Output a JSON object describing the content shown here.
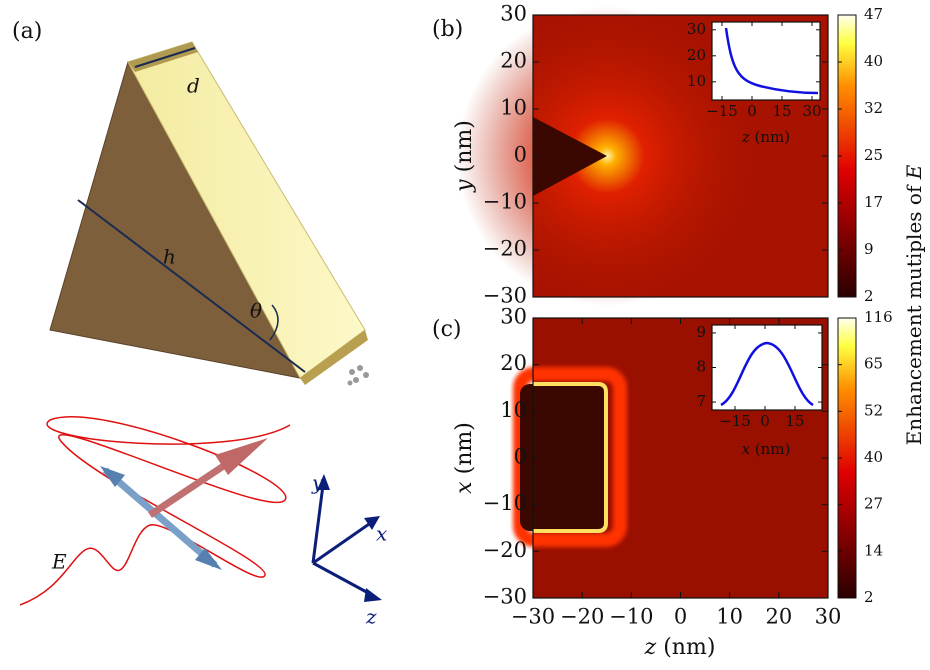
{
  "panel_a": {
    "label": "(a)",
    "prism_labels": {
      "d": "d",
      "h": "h",
      "theta": "θ"
    },
    "field_label": "E",
    "axes": {
      "x": "x",
      "y": "y",
      "z": "z"
    }
  },
  "panel_b": {
    "label": "(b)",
    "y_axis_title": {
      "symbol": "y",
      "unit": "(nm)"
    },
    "xlim": [
      -30,
      30
    ],
    "ylim": [
      -30,
      30
    ],
    "yticks": [
      30,
      20,
      10,
      0,
      {
        "value": -10,
        "label": "−10"
      },
      {
        "value": -20,
        "label": "−20"
      },
      {
        "value": -30,
        "label": "−30"
      }
    ],
    "colorbar": {
      "ticks": [
        2,
        9,
        17,
        25,
        32,
        40,
        47
      ]
    },
    "inset": {
      "x_title": {
        "symbol": "z",
        "unit": "(nm)"
      },
      "xlim": [
        -20,
        34
      ],
      "ylim": [
        3,
        33
      ],
      "xticks": [
        {
          "value": -15,
          "label": "−15"
        },
        0,
        15,
        30
      ],
      "yticks": [
        10,
        20,
        30
      ]
    }
  },
  "panel_c": {
    "label": "(c)",
    "y_axis_title": {
      "symbol": "x",
      "unit": "(nm)"
    },
    "x_axis_title": {
      "symbol": "z",
      "unit": "(nm)"
    },
    "xlim": [
      -30,
      30
    ],
    "ylim": [
      -30,
      30
    ],
    "xticks": [
      {
        "value": -30,
        "label": "−30"
      },
      {
        "value": -20,
        "label": "−20"
      },
      {
        "value": -10,
        "label": "−10"
      },
      0,
      10,
      20,
      30
    ],
    "yticks": [
      30,
      20,
      10,
      0,
      {
        "value": -10,
        "label": "−10"
      },
      {
        "value": -20,
        "label": "−20"
      },
      {
        "value": -30,
        "label": "−30"
      }
    ],
    "colorbar": {
      "ticks": [
        2,
        14,
        27,
        40,
        52,
        65,
        116
      ]
    },
    "inset": {
      "x_title": {
        "symbol": "x",
        "unit": "(nm)"
      },
      "xlim": [
        -26.5,
        28.5
      ],
      "ylim": [
        6.77,
        9.23
      ],
      "xticks": [
        {
          "value": -15,
          "label": "−15"
        },
        0,
        15
      ],
      "yticks": [
        7,
        8,
        9
      ]
    }
  },
  "colorbar_title": {
    "text": "Enhancement mutiples of",
    "symbol": "E"
  }
}
